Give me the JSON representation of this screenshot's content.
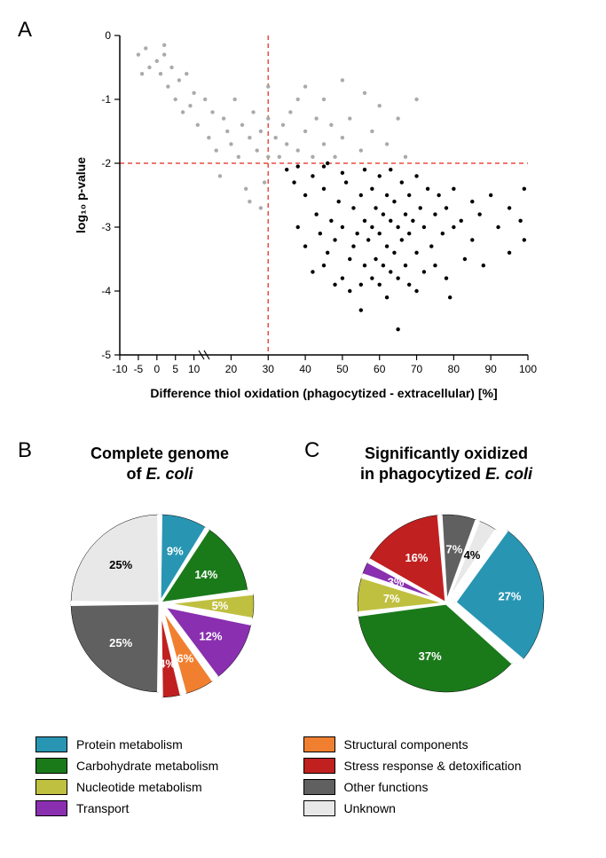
{
  "panelA": {
    "label": "A",
    "xlabel": "Difference thiol oxidation (phagocytized - extracellular) [%]",
    "ylabel": "log₁₀ p-value",
    "xlim": [
      -10,
      100
    ],
    "ylim": [
      0,
      -5
    ],
    "xticks": [
      -10,
      -5,
      0,
      5,
      10,
      20,
      30,
      40,
      50,
      60,
      70,
      80,
      90,
      100
    ],
    "yticks": [
      0,
      -1,
      -2,
      -3,
      -4,
      -5
    ],
    "threshold_x": 30,
    "threshold_y": -2,
    "threshold_color": "#e74c3c",
    "axis_break_at": 12,
    "background": "#ffffff",
    "dot_radius": 2.2,
    "sig_color": "#000000",
    "nonsig_color": "#aaaaaa",
    "font_label": 14,
    "font_tick": 12,
    "significant_points": [
      [
        35,
        -2.1
      ],
      [
        37,
        -2.3
      ],
      [
        38,
        -3.0
      ],
      [
        40,
        -2.5
      ],
      [
        40,
        -3.3
      ],
      [
        42,
        -2.2
      ],
      [
        42,
        -3.7
      ],
      [
        43,
        -2.8
      ],
      [
        44,
        -3.1
      ],
      [
        45,
        -2.4
      ],
      [
        45,
        -3.6
      ],
      [
        46,
        -2.0
      ],
      [
        46,
        -3.4
      ],
      [
        47,
        -2.9
      ],
      [
        48,
        -3.2
      ],
      [
        48,
        -3.9
      ],
      [
        49,
        -2.6
      ],
      [
        50,
        -3.0
      ],
      [
        50,
        -3.8
      ],
      [
        51,
        -2.3
      ],
      [
        52,
        -3.5
      ],
      [
        52,
        -4.0
      ],
      [
        53,
        -2.7
      ],
      [
        53,
        -3.3
      ],
      [
        54,
        -3.1
      ],
      [
        55,
        -2.5
      ],
      [
        55,
        -3.9
      ],
      [
        55,
        -4.3
      ],
      [
        56,
        -2.9
      ],
      [
        56,
        -3.6
      ],
      [
        57,
        -3.2
      ],
      [
        58,
        -2.4
      ],
      [
        58,
        -3.0
      ],
      [
        58,
        -3.8
      ],
      [
        59,
        -2.7
      ],
      [
        59,
        -3.5
      ],
      [
        60,
        -2.2
      ],
      [
        60,
        -3.1
      ],
      [
        60,
        -3.9
      ],
      [
        61,
        -2.8
      ],
      [
        61,
        -3.6
      ],
      [
        62,
        -2.5
      ],
      [
        62,
        -3.3
      ],
      [
        62,
        -4.1
      ],
      [
        63,
        -2.9
      ],
      [
        63,
        -3.7
      ],
      [
        64,
        -2.6
      ],
      [
        64,
        -3.4
      ],
      [
        65,
        -3.0
      ],
      [
        65,
        -3.8
      ],
      [
        65,
        -4.6
      ],
      [
        66,
        -2.3
      ],
      [
        66,
        -3.2
      ],
      [
        67,
        -2.8
      ],
      [
        67,
        -3.6
      ],
      [
        68,
        -2.5
      ],
      [
        68,
        -3.1
      ],
      [
        68,
        -3.9
      ],
      [
        69,
        -2.9
      ],
      [
        70,
        -2.2
      ],
      [
        70,
        -3.4
      ],
      [
        70,
        -4.0
      ],
      [
        71,
        -2.7
      ],
      [
        72,
        -3.0
      ],
      [
        72,
        -3.7
      ],
      [
        73,
        -2.4
      ],
      [
        74,
        -3.3
      ],
      [
        75,
        -2.8
      ],
      [
        75,
        -3.6
      ],
      [
        76,
        -2.5
      ],
      [
        77,
        -3.1
      ],
      [
        78,
        -2.7
      ],
      [
        78,
        -3.8
      ],
      [
        79,
        -4.1
      ],
      [
        80,
        -2.4
      ],
      [
        80,
        -3.0
      ],
      [
        82,
        -2.9
      ],
      [
        83,
        -3.5
      ],
      [
        85,
        -2.6
      ],
      [
        85,
        -3.2
      ],
      [
        87,
        -2.8
      ],
      [
        88,
        -3.6
      ],
      [
        90,
        -2.5
      ],
      [
        92,
        -3.0
      ],
      [
        95,
        -2.7
      ],
      [
        95,
        -3.4
      ],
      [
        98,
        -2.9
      ],
      [
        99,
        -2.4
      ],
      [
        99,
        -3.2
      ],
      [
        38,
        -2.05
      ],
      [
        50,
        -2.15
      ],
      [
        56,
        -2.1
      ],
      [
        63,
        -2.1
      ],
      [
        45,
        -2.05
      ]
    ],
    "nonsignificant_points": [
      [
        -5,
        -0.3
      ],
      [
        -3,
        -0.2
      ],
      [
        -2,
        -0.5
      ],
      [
        0,
        -0.4
      ],
      [
        1,
        -0.6
      ],
      [
        2,
        -0.3
      ],
      [
        3,
        -0.8
      ],
      [
        4,
        -0.5
      ],
      [
        5,
        -1.0
      ],
      [
        6,
        -0.7
      ],
      [
        7,
        -1.2
      ],
      [
        8,
        -0.6
      ],
      [
        9,
        -1.1
      ],
      [
        10,
        -0.9
      ],
      [
        11,
        -1.4
      ],
      [
        13,
        -1.0
      ],
      [
        14,
        -1.6
      ],
      [
        15,
        -1.2
      ],
      [
        16,
        -1.8
      ],
      [
        18,
        -1.3
      ],
      [
        19,
        -1.5
      ],
      [
        20,
        -1.7
      ],
      [
        21,
        -1.0
      ],
      [
        22,
        -1.9
      ],
      [
        23,
        -1.4
      ],
      [
        24,
        -2.4
      ],
      [
        25,
        -1.6
      ],
      [
        25,
        -2.6
      ],
      [
        26,
        -1.2
      ],
      [
        27,
        -1.8
      ],
      [
        28,
        -2.7
      ],
      [
        28,
        -1.5
      ],
      [
        29,
        -2.3
      ],
      [
        30,
        -1.9
      ],
      [
        30,
        -0.8
      ],
      [
        30,
        -1.3
      ],
      [
        32,
        -1.6
      ],
      [
        33,
        -1.9
      ],
      [
        34,
        -1.4
      ],
      [
        35,
        -1.7
      ],
      [
        36,
        -1.2
      ],
      [
        38,
        -1.8
      ],
      [
        38,
        -1.0
      ],
      [
        40,
        -1.5
      ],
      [
        40,
        -0.8
      ],
      [
        42,
        -1.9
      ],
      [
        43,
        -1.3
      ],
      [
        45,
        -1.0
      ],
      [
        45,
        -1.7
      ],
      [
        47,
        -1.4
      ],
      [
        48,
        -1.9
      ],
      [
        50,
        -0.7
      ],
      [
        50,
        -1.6
      ],
      [
        52,
        -1.3
      ],
      [
        55,
        -1.8
      ],
      [
        56,
        -0.9
      ],
      [
        58,
        -1.5
      ],
      [
        60,
        -1.1
      ],
      [
        62,
        -1.7
      ],
      [
        65,
        -1.3
      ],
      [
        67,
        -1.9
      ],
      [
        70,
        -1.0
      ],
      [
        17,
        -2.2
      ],
      [
        2,
        -0.15
      ],
      [
        -4,
        -0.6
      ]
    ]
  },
  "panelB": {
    "label": "B",
    "title_line1": "Complete genome",
    "title_line2_pre": "of ",
    "title_line2_it": "E. coli",
    "slices": [
      {
        "value": 9,
        "color": "#2896b3",
        "label": "9%",
        "explode": 0
      },
      {
        "value": 14,
        "color": "#1a7a1a",
        "label": "14%",
        "explode": 0
      },
      {
        "value": 5,
        "color": "#c0c040",
        "label": "5%",
        "explode": 6
      },
      {
        "value": 12,
        "color": "#8a2fb0",
        "label": "12%",
        "explode": 6
      },
      {
        "value": 6,
        "color": "#f08030",
        "label": "6%",
        "explode": 6
      },
      {
        "value": 4,
        "color": "#c02020",
        "label": "4%",
        "explode": 6
      },
      {
        "value": 25,
        "color": "#606060",
        "label": "25%",
        "explode": 0
      },
      {
        "value": 25,
        "color": "#e8e8e8",
        "label": "25%",
        "explode": 0
      }
    ],
    "start_angle": -90,
    "stroke": "#000000",
    "stroke_width": 0.5,
    "slice_gap": "#ffffff",
    "label_color": "#ffffff",
    "label_fontsize": 13
  },
  "panelC": {
    "label": "C",
    "title_line1": "Significantly oxidized",
    "title_line2_pre": "in phagocytized ",
    "title_line2_it": "E. coli",
    "slices": [
      {
        "value": 27,
        "color": "#2896b3",
        "label": "27%",
        "explode": 10
      },
      {
        "value": 37,
        "color": "#1a7a1a",
        "label": "37%",
        "explode": 0
      },
      {
        "value": 7,
        "color": "#c0c040",
        "label": "7%",
        "explode": 0
      },
      {
        "value": 3,
        "color": "#8a2fb0",
        "label": "3%",
        "explode": 0
      },
      {
        "value": 16,
        "color": "#c02020",
        "label": "16%",
        "explode": 0
      },
      {
        "value": 7,
        "color": "#606060",
        "label": "7%",
        "explode": 0
      },
      {
        "value": 4,
        "color": "#e8e8e8",
        "label": "4%",
        "explode": 0
      }
    ],
    "start_angle": -55,
    "stroke": "#000000",
    "stroke_width": 0.5,
    "slice_gap": "#ffffff",
    "label_color": "#ffffff",
    "label_fontsize": 13
  },
  "legend": {
    "left": [
      {
        "color": "#2896b3",
        "label": "Protein metabolism"
      },
      {
        "color": "#1a7a1a",
        "label": "Carbohydrate metabolism"
      },
      {
        "color": "#c0c040",
        "label": "Nucleotide metabolism"
      },
      {
        "color": "#8a2fb0",
        "label": "Transport"
      }
    ],
    "right": [
      {
        "color": "#f08030",
        "label": "Structural components"
      },
      {
        "color": "#c02020",
        "label": "Stress response & detoxification"
      },
      {
        "color": "#606060",
        "label": "Other functions"
      },
      {
        "color": "#e8e8e8",
        "label": "Unknown"
      }
    ]
  }
}
